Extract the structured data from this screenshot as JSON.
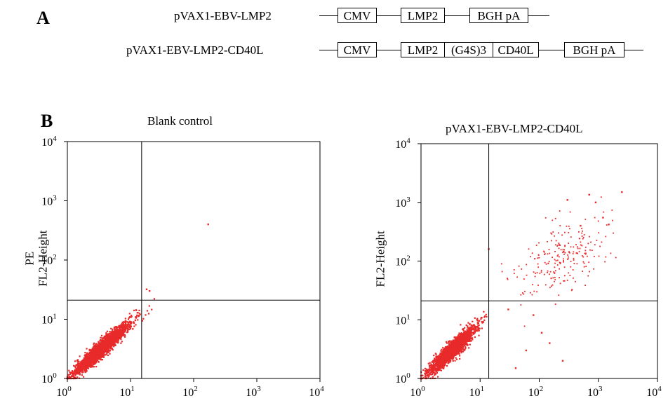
{
  "panel_a": {
    "letter": "A",
    "constructs": [
      {
        "name": "pVAX1-EBV-LMP2",
        "elements": [
          "CMV",
          "LMP2",
          "BGH pA"
        ]
      },
      {
        "name": "pVAX1-EBV-LMP2-CD40L",
        "elements": [
          "CMV",
          "LMP2",
          "(G4S)3",
          "CD40L",
          "BGH pA"
        ]
      }
    ]
  },
  "panel_b": {
    "letter": "B",
    "tick_labels": [
      "10^0",
      "10^1",
      "10^2",
      "10^3",
      "10^4"
    ]
  },
  "chart_data": [
    {
      "type": "scatter",
      "title": "Blank control",
      "xlabel": "",
      "ylabel": "PE FL2-Height",
      "ylabel_lines": [
        "PE",
        "FL2-Height"
      ],
      "x_scale": "log",
      "y_scale": "log",
      "xlim": [
        1,
        10000
      ],
      "ylim": [
        1,
        10000
      ],
      "quadrant_gate": {
        "x": 15,
        "y": 21
      },
      "color": "#e82a2a",
      "main_population": {
        "x_center": 3.5,
        "y_center": 3.2,
        "x_log_spread": 0.22,
        "y_log_spread": 0.22,
        "correlation": 0.95,
        "count": 2600
      },
      "outliers": [
        {
          "x": 170,
          "y": 400
        },
        {
          "x": 18,
          "y": 32
        },
        {
          "x": 20,
          "y": 30
        }
      ]
    },
    {
      "type": "scatter",
      "title": "pVAX1-EBV-LMP2-CD40L",
      "xlabel": "",
      "ylabel": "FL2-Height",
      "ylabel_lines": [
        "FL2-Height"
      ],
      "x_scale": "log",
      "y_scale": "log",
      "xlim": [
        1,
        10000
      ],
      "ylim": [
        1,
        10000
      ],
      "quadrant_gate": {
        "x": 14,
        "y": 21
      },
      "color": "#e82a2a",
      "main_population": {
        "x_center": 3.3,
        "y_center": 3.0,
        "x_log_spread": 0.2,
        "y_log_spread": 0.2,
        "correlation": 0.93,
        "count": 1900
      },
      "upper_right_population": {
        "x_center": 250,
        "y_center": 110,
        "x_log_spread": 0.4,
        "y_log_spread": 0.35,
        "correlation": 0.55,
        "count": 230
      },
      "outliers": [
        {
          "x": 2500,
          "y": 1500
        },
        {
          "x": 700,
          "y": 1350
        },
        {
          "x": 300,
          "y": 1100
        },
        {
          "x": 900,
          "y": 1000
        },
        {
          "x": 1200,
          "y": 550
        },
        {
          "x": 1500,
          "y": 420
        },
        {
          "x": 500,
          "y": 400
        },
        {
          "x": 14,
          "y": 160
        },
        {
          "x": 150,
          "y": 4
        },
        {
          "x": 60,
          "y": 3
        },
        {
          "x": 250,
          "y": 2
        },
        {
          "x": 110,
          "y": 6
        },
        {
          "x": 40,
          "y": 1.5
        },
        {
          "x": 80,
          "y": 12
        },
        {
          "x": 30,
          "y": 15
        }
      ]
    }
  ]
}
